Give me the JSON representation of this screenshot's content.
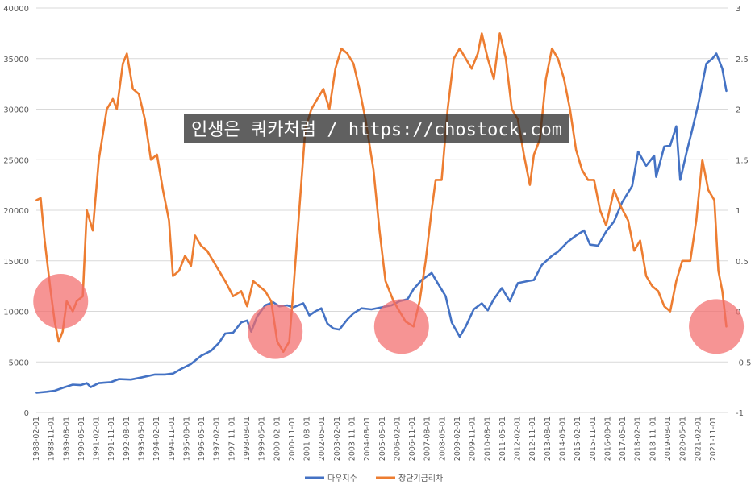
{
  "watermark": "인생은 쿼카처럼 / https://chostock.com",
  "legend": {
    "position": "bottom",
    "items": [
      {
        "label": "다우지수",
        "color": "#4472C4"
      },
      {
        "label": "장단기금리차",
        "color": "#ED7D31"
      }
    ]
  },
  "chart_data": {
    "type": "line",
    "title": "",
    "xlabel": "",
    "ylabel": "",
    "grid": true,
    "legend_position": "bottom",
    "x_ticks": [
      "1988-02-01",
      "1988-11-01",
      "1989-08-01",
      "1990-05-01",
      "1991-02-01",
      "1991-11-01",
      "1992-08-01",
      "1993-05-01",
      "1994-02-01",
      "1994-11-01",
      "1995-08-01",
      "1996-05-01",
      "1997-02-01",
      "1997-11-01",
      "1998-08-01",
      "1999-05-01",
      "2000-02-01",
      "2000-11-01",
      "2001-08-01",
      "2002-05-01",
      "2003-02-01",
      "2003-11-01",
      "2004-08-01",
      "2005-05-01",
      "2006-02-01",
      "2006-11-01",
      "2007-08-01",
      "2008-05-01",
      "2009-02-01",
      "2009-11-01",
      "2010-08-01",
      "2011-05-01",
      "2012-02-01",
      "2012-11-01",
      "2013-08-01",
      "2014-05-01",
      "2015-02-01",
      "2015-11-01",
      "2016-08-01",
      "2017-05-01",
      "2018-02-01",
      "2018-11-01",
      "2019-08-01",
      "2020-05-01",
      "2021-02-01",
      "2021-11-01"
    ],
    "y_left": {
      "min": 0,
      "max": 40000,
      "ticks": [
        "0",
        "5000",
        "10000",
        "15000",
        "20000",
        "25000",
        "30000",
        "35000",
        "40000"
      ]
    },
    "y_right": {
      "min": -1,
      "max": 3,
      "ticks": [
        "-1",
        "-0.5",
        "0",
        "0.5",
        "1",
        "1.5",
        "2",
        "2.5",
        "3"
      ]
    },
    "series": [
      {
        "name": "다우지수",
        "axis": "left",
        "color": "#4472C4",
        "points": [
          [
            1988.1,
            1950
          ],
          [
            1988.6,
            2050
          ],
          [
            1989.0,
            2150
          ],
          [
            1989.5,
            2500
          ],
          [
            1989.9,
            2750
          ],
          [
            1990.3,
            2700
          ],
          [
            1990.6,
            2900
          ],
          [
            1990.8,
            2500
          ],
          [
            1991.2,
            2900
          ],
          [
            1991.8,
            3000
          ],
          [
            1992.2,
            3300
          ],
          [
            1992.8,
            3250
          ],
          [
            1993.3,
            3450
          ],
          [
            1994.0,
            3750
          ],
          [
            1994.5,
            3750
          ],
          [
            1994.9,
            3850
          ],
          [
            1995.3,
            4300
          ],
          [
            1995.8,
            4800
          ],
          [
            1996.3,
            5600
          ],
          [
            1996.8,
            6100
          ],
          [
            1997.2,
            6900
          ],
          [
            1997.5,
            7800
          ],
          [
            1997.9,
            7900
          ],
          [
            1998.3,
            8900
          ],
          [
            1998.6,
            9100
          ],
          [
            1998.8,
            8000
          ],
          [
            1999.1,
            9500
          ],
          [
            1999.5,
            10600
          ],
          [
            1999.9,
            10900
          ],
          [
            2000.2,
            10500
          ],
          [
            2000.6,
            10600
          ],
          [
            2000.9,
            10400
          ],
          [
            2001.4,
            10800
          ],
          [
            2001.7,
            9600
          ],
          [
            2002.0,
            10000
          ],
          [
            2002.3,
            10300
          ],
          [
            2002.6,
            8800
          ],
          [
            2002.9,
            8300
          ],
          [
            2003.2,
            8200
          ],
          [
            2003.6,
            9200
          ],
          [
            2003.9,
            9800
          ],
          [
            2004.3,
            10300
          ],
          [
            2004.8,
            10200
          ],
          [
            2005.3,
            10400
          ],
          [
            2005.8,
            10600
          ],
          [
            2006.2,
            11000
          ],
          [
            2006.6,
            11200
          ],
          [
            2006.9,
            12200
          ],
          [
            2007.3,
            13100
          ],
          [
            2007.8,
            13800
          ],
          [
            2008.1,
            12800
          ],
          [
            2008.5,
            11500
          ],
          [
            2008.8,
            8900
          ],
          [
            2009.2,
            7500
          ],
          [
            2009.5,
            8500
          ],
          [
            2009.9,
            10200
          ],
          [
            2010.3,
            10800
          ],
          [
            2010.6,
            10100
          ],
          [
            2010.9,
            11200
          ],
          [
            2011.3,
            12300
          ],
          [
            2011.7,
            11000
          ],
          [
            2012.1,
            12800
          ],
          [
            2012.6,
            13000
          ],
          [
            2012.9,
            13100
          ],
          [
            2013.3,
            14600
          ],
          [
            2013.8,
            15500
          ],
          [
            2014.1,
            15900
          ],
          [
            2014.6,
            16900
          ],
          [
            2015.0,
            17500
          ],
          [
            2015.4,
            18000
          ],
          [
            2015.7,
            16600
          ],
          [
            2016.1,
            16500
          ],
          [
            2016.5,
            17900
          ],
          [
            2016.9,
            18900
          ],
          [
            2017.3,
            20800
          ],
          [
            2017.8,
            22400
          ],
          [
            2018.1,
            25800
          ],
          [
            2018.5,
            24400
          ],
          [
            2018.9,
            25400
          ],
          [
            2019.0,
            23300
          ],
          [
            2019.4,
            26300
          ],
          [
            2019.7,
            26400
          ],
          [
            2020.0,
            28300
          ],
          [
            2020.2,
            23000
          ],
          [
            2020.5,
            25600
          ],
          [
            2020.8,
            28000
          ],
          [
            2021.1,
            30500
          ],
          [
            2021.5,
            34500
          ],
          [
            2021.8,
            35000
          ],
          [
            2022.0,
            35500
          ],
          [
            2022.3,
            34000
          ],
          [
            2022.5,
            31800
          ]
        ]
      },
      {
        "name": "장단기금리차",
        "axis": "right",
        "color": "#ED7D31",
        "points": [
          [
            1988.1,
            1.1
          ],
          [
            1988.3,
            1.12
          ],
          [
            1988.5,
            0.7
          ],
          [
            1988.8,
            0.2
          ],
          [
            1989.0,
            -0.1
          ],
          [
            1989.2,
            -0.3
          ],
          [
            1989.4,
            -0.2
          ],
          [
            1989.6,
            0.1
          ],
          [
            1989.9,
            0.0
          ],
          [
            1990.1,
            0.1
          ],
          [
            1990.4,
            0.15
          ],
          [
            1990.6,
            1.0
          ],
          [
            1990.9,
            0.8
          ],
          [
            1991.2,
            1.5
          ],
          [
            1991.6,
            2.0
          ],
          [
            1991.9,
            2.1
          ],
          [
            1992.1,
            2.0
          ],
          [
            1992.4,
            2.45
          ],
          [
            1992.6,
            2.55
          ],
          [
            1992.9,
            2.2
          ],
          [
            1993.2,
            2.15
          ],
          [
            1993.5,
            1.9
          ],
          [
            1993.8,
            1.5
          ],
          [
            1994.1,
            1.55
          ],
          [
            1994.4,
            1.2
          ],
          [
            1994.7,
            0.9
          ],
          [
            1994.9,
            0.35
          ],
          [
            1995.2,
            0.4
          ],
          [
            1995.5,
            0.55
          ],
          [
            1995.8,
            0.45
          ],
          [
            1996.0,
            0.75
          ],
          [
            1996.3,
            0.65
          ],
          [
            1996.6,
            0.6
          ],
          [
            1996.9,
            0.5
          ],
          [
            1997.2,
            0.4
          ],
          [
            1997.5,
            0.3
          ],
          [
            1997.9,
            0.15
          ],
          [
            1998.3,
            0.2
          ],
          [
            1998.6,
            0.05
          ],
          [
            1998.9,
            0.3
          ],
          [
            1999.2,
            0.25
          ],
          [
            1999.5,
            0.2
          ],
          [
            1999.8,
            0.1
          ],
          [
            2000.1,
            -0.3
          ],
          [
            2000.4,
            -0.4
          ],
          [
            2000.7,
            -0.3
          ],
          [
            2000.9,
            0.2
          ],
          [
            2001.2,
            1.0
          ],
          [
            2001.5,
            1.8
          ],
          [
            2001.8,
            2.0
          ],
          [
            2002.1,
            2.1
          ],
          [
            2002.4,
            2.2
          ],
          [
            2002.7,
            2.0
          ],
          [
            2003.0,
            2.4
          ],
          [
            2003.3,
            2.6
          ],
          [
            2003.6,
            2.55
          ],
          [
            2003.9,
            2.45
          ],
          [
            2004.2,
            2.2
          ],
          [
            2004.5,
            1.9
          ],
          [
            2004.9,
            1.4
          ],
          [
            2005.2,
            0.8
          ],
          [
            2005.5,
            0.3
          ],
          [
            2005.9,
            0.1
          ],
          [
            2006.2,
            0.0
          ],
          [
            2006.5,
            -0.1
          ],
          [
            2006.9,
            -0.15
          ],
          [
            2007.2,
            0.1
          ],
          [
            2007.5,
            0.5
          ],
          [
            2007.8,
            1.0
          ],
          [
            2008.0,
            1.3
          ],
          [
            2008.3,
            1.3
          ],
          [
            2008.6,
            2.0
          ],
          [
            2008.9,
            2.5
          ],
          [
            2009.2,
            2.6
          ],
          [
            2009.5,
            2.5
          ],
          [
            2009.8,
            2.4
          ],
          [
            2010.1,
            2.55
          ],
          [
            2010.3,
            2.75
          ],
          [
            2010.6,
            2.5
          ],
          [
            2010.9,
            2.3
          ],
          [
            2011.2,
            2.75
          ],
          [
            2011.5,
            2.5
          ],
          [
            2011.8,
            2.0
          ],
          [
            2012.1,
            1.9
          ],
          [
            2012.4,
            1.55
          ],
          [
            2012.7,
            1.25
          ],
          [
            2012.9,
            1.55
          ],
          [
            2013.2,
            1.7
          ],
          [
            2013.5,
            2.3
          ],
          [
            2013.8,
            2.6
          ],
          [
            2014.1,
            2.5
          ],
          [
            2014.4,
            2.3
          ],
          [
            2014.7,
            2.0
          ],
          [
            2015.0,
            1.6
          ],
          [
            2015.3,
            1.4
          ],
          [
            2015.6,
            1.3
          ],
          [
            2015.9,
            1.3
          ],
          [
            2016.2,
            1.0
          ],
          [
            2016.5,
            0.85
          ],
          [
            2016.9,
            1.2
          ],
          [
            2017.2,
            1.05
          ],
          [
            2017.6,
            0.9
          ],
          [
            2017.9,
            0.6
          ],
          [
            2018.2,
            0.7
          ],
          [
            2018.5,
            0.35
          ],
          [
            2018.8,
            0.25
          ],
          [
            2019.1,
            0.2
          ],
          [
            2019.4,
            0.05
          ],
          [
            2019.7,
            0.0
          ],
          [
            2020.0,
            0.3
          ],
          [
            2020.3,
            0.5
          ],
          [
            2020.7,
            0.5
          ],
          [
            2021.0,
            0.9
          ],
          [
            2021.3,
            1.5
          ],
          [
            2021.6,
            1.2
          ],
          [
            2021.9,
            1.1
          ],
          [
            2022.1,
            0.4
          ],
          [
            2022.3,
            0.2
          ],
          [
            2022.5,
            -0.15
          ]
        ]
      }
    ],
    "highlights": [
      {
        "x": 1989.3,
        "y": 0.1
      },
      {
        "x": 2000.0,
        "y": -0.2
      },
      {
        "x": 2006.3,
        "y": -0.15
      },
      {
        "x": 2022.0,
        "y": -0.15
      }
    ]
  }
}
